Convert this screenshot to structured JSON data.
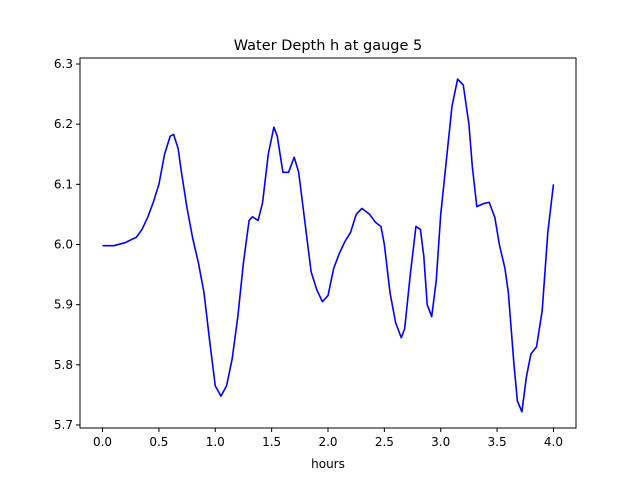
{
  "chart_data": {
    "type": "line",
    "title": "Water Depth h at gauge 5",
    "xlabel": "hours",
    "ylabel": "",
    "xlim": [
      -0.2,
      4.2
    ],
    "ylim": [
      5.695,
      6.31
    ],
    "xticks": [
      0.0,
      0.5,
      1.0,
      1.5,
      2.0,
      2.5,
      3.0,
      3.5,
      4.0
    ],
    "xtick_labels": [
      "0.0",
      "0.5",
      "1.0",
      "1.5",
      "2.0",
      "2.5",
      "3.0",
      "3.5",
      "4.0"
    ],
    "yticks": [
      5.7,
      5.8,
      5.9,
      6.0,
      6.1,
      6.2,
      6.3
    ],
    "ytick_labels": [
      "5.7",
      "5.8",
      "5.9",
      "6.0",
      "6.1",
      "6.2",
      "6.3"
    ],
    "grid": false,
    "series": [
      {
        "color": "#0000ff",
        "x": [
          0.0,
          0.1,
          0.2,
          0.3,
          0.35,
          0.4,
          0.45,
          0.5,
          0.55,
          0.6,
          0.63,
          0.67,
          0.7,
          0.75,
          0.8,
          0.85,
          0.9,
          0.95,
          1.0,
          1.05,
          1.1,
          1.15,
          1.2,
          1.25,
          1.3,
          1.33,
          1.38,
          1.42,
          1.47,
          1.52,
          1.55,
          1.6,
          1.65,
          1.7,
          1.74,
          1.8,
          1.85,
          1.9,
          1.95,
          2.0,
          2.05,
          2.1,
          2.15,
          2.2,
          2.25,
          2.3,
          2.37,
          2.42,
          2.47,
          2.5,
          2.55,
          2.6,
          2.65,
          2.68,
          2.73,
          2.78,
          2.82,
          2.85,
          2.88,
          2.92,
          2.96,
          3.0,
          3.05,
          3.1,
          3.15,
          3.2,
          3.25,
          3.28,
          3.32,
          3.38,
          3.43,
          3.48,
          3.52,
          3.57,
          3.6,
          3.65,
          3.68,
          3.72,
          3.76,
          3.8,
          3.85,
          3.9,
          3.95,
          4.0
        ],
        "y": [
          5.998,
          5.998,
          6.003,
          6.012,
          6.025,
          6.045,
          6.07,
          6.1,
          6.15,
          6.18,
          6.183,
          6.16,
          6.12,
          6.06,
          6.01,
          5.97,
          5.92,
          5.84,
          5.765,
          5.748,
          5.765,
          5.81,
          5.88,
          5.97,
          6.04,
          6.046,
          6.04,
          6.07,
          6.15,
          6.195,
          6.18,
          6.12,
          6.12,
          6.145,
          6.12,
          6.03,
          5.955,
          5.925,
          5.905,
          5.915,
          5.96,
          5.985,
          6.005,
          6.02,
          6.05,
          6.06,
          6.05,
          6.037,
          6.03,
          6.0,
          5.92,
          5.87,
          5.845,
          5.86,
          5.95,
          6.03,
          6.025,
          5.98,
          5.9,
          5.88,
          5.94,
          6.05,
          6.14,
          6.23,
          6.275,
          6.265,
          6.2,
          6.13,
          6.063,
          6.068,
          6.07,
          6.045,
          6.0,
          5.96,
          5.92,
          5.8,
          5.74,
          5.722,
          5.78,
          5.818,
          5.83,
          5.89,
          6.02,
          6.1
        ]
      }
    ]
  }
}
